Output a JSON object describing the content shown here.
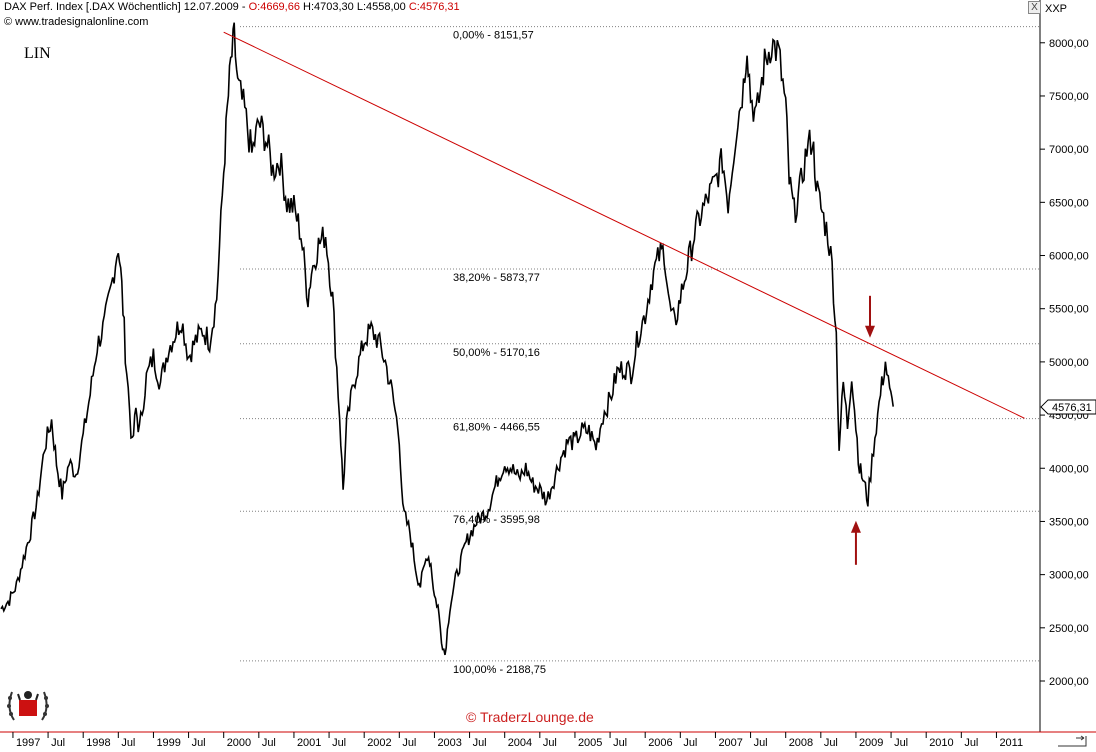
{
  "header": {
    "title": "DAX Perf. Index [.DAX  Wöchentlich]",
    "date": "12.07.2009",
    "open": "O:4669,66",
    "high": "H:4703,30",
    "low": "L:4558,00",
    "close": "C:4576,31",
    "source": "www.tradesignalonline.com",
    "close_color": "#cc0000"
  },
  "scale_label": "LIN",
  "right_top_label": "XXP",
  "close_close_button": "X",
  "brand": "© TraderzLounge.de",
  "colors": {
    "price": "#000000",
    "trendline": "#cc0000",
    "arrow": "#a01010",
    "grid": "#808080"
  },
  "chart_data": {
    "type": "line",
    "title": "DAX Perf. Index [.DAX  Wöchentlich]",
    "xlabel": "",
    "ylabel": "",
    "ylim": [
      1500,
      8200
    ],
    "yticks": [
      "2000,00",
      "2500,00",
      "3000,00",
      "3500,00",
      "4000,00",
      "4500,00",
      "5000,00",
      "5500,00",
      "6000,00",
      "6500,00",
      "7000,00",
      "7500,00",
      "8000,00"
    ],
    "xticks": [
      {
        "t": 1997.0,
        "label": "1997"
      },
      {
        "t": 1997.5,
        "label": "Jul"
      },
      {
        "t": 1998.0,
        "label": "1998"
      },
      {
        "t": 1998.5,
        "label": "Jul"
      },
      {
        "t": 1999.0,
        "label": "1999"
      },
      {
        "t": 1999.5,
        "label": "Jul"
      },
      {
        "t": 2000.0,
        "label": "2000"
      },
      {
        "t": 2000.5,
        "label": "Jul"
      },
      {
        "t": 2001.0,
        "label": "2001"
      },
      {
        "t": 2001.5,
        "label": "Jul"
      },
      {
        "t": 2002.0,
        "label": "2002"
      },
      {
        "t": 2002.5,
        "label": "Jul"
      },
      {
        "t": 2003.0,
        "label": "2003"
      },
      {
        "t": 2003.5,
        "label": "Jul"
      },
      {
        "t": 2004.0,
        "label": "2004"
      },
      {
        "t": 2004.5,
        "label": "Jul"
      },
      {
        "t": 2005.0,
        "label": "2005"
      },
      {
        "t": 2005.5,
        "label": "Jul"
      },
      {
        "t": 2006.0,
        "label": "2006"
      },
      {
        "t": 2006.5,
        "label": "Jul"
      },
      {
        "t": 2007.0,
        "label": "2007"
      },
      {
        "t": 2007.5,
        "label": "Jul"
      },
      {
        "t": 2008.0,
        "label": "2008"
      },
      {
        "t": 2008.5,
        "label": "Jul"
      },
      {
        "t": 2009.0,
        "label": "2009"
      },
      {
        "t": 2009.5,
        "label": "Jul"
      },
      {
        "t": 2010.0,
        "label": "2010"
      },
      {
        "t": 2010.5,
        "label": "Jul"
      },
      {
        "t": 2011.0,
        "label": "2011"
      }
    ],
    "fib_levels": [
      {
        "label": "0,00% - 8151,57",
        "value": 8151.57
      },
      {
        "label": "38,20% - 5873,77",
        "value": 5873.77
      },
      {
        "label": "50,00% - 5170,16",
        "value": 5170.16
      },
      {
        "label": "61,80% - 4466,55",
        "value": 4466.55
      },
      {
        "label": "76,40% - 3595,98",
        "value": 3595.98
      },
      {
        "label": "100,00% - 2188,75",
        "value": 2188.75
      }
    ],
    "last_value_label": "4576,31",
    "last_value": 4576.31,
    "trendline": [
      {
        "t": 2000.0,
        "v": 8100
      },
      {
        "t": 2011.4,
        "v": 4470
      }
    ],
    "arrows": [
      {
        "t": 2009.2,
        "v": 5170,
        "direction": "down"
      },
      {
        "t": 2009.0,
        "v": 3600,
        "direction": "up"
      }
    ],
    "series": [
      {
        "values": [
          [
            1996.83,
            2680
          ],
          [
            1996.95,
            2760
          ],
          [
            1997.05,
            2900
          ],
          [
            1997.15,
            3150
          ],
          [
            1997.25,
            3400
          ],
          [
            1997.35,
            3700
          ],
          [
            1997.45,
            4200
          ],
          [
            1997.55,
            4450
          ],
          [
            1997.62,
            4050
          ],
          [
            1997.7,
            3750
          ],
          [
            1997.8,
            4050
          ],
          [
            1997.9,
            3950
          ],
          [
            1998.0,
            4300
          ],
          [
            1998.1,
            4700
          ],
          [
            1998.2,
            5150
          ],
          [
            1998.3,
            5350
          ],
          [
            1998.4,
            5700
          ],
          [
            1998.5,
            6100
          ],
          [
            1998.55,
            5700
          ],
          [
            1998.6,
            5100
          ],
          [
            1998.7,
            4200
          ],
          [
            1998.75,
            4550
          ],
          [
            1998.8,
            4350
          ],
          [
            1998.9,
            4850
          ],
          [
            1999.0,
            5050
          ],
          [
            1999.1,
            4800
          ],
          [
            1999.2,
            5100
          ],
          [
            1999.3,
            5250
          ],
          [
            1999.4,
            5400
          ],
          [
            1999.5,
            5050
          ],
          [
            1999.6,
            5200
          ],
          [
            1999.7,
            5300
          ],
          [
            1999.8,
            5200
          ],
          [
            1999.9,
            5600
          ],
          [
            2000.0,
            6800
          ],
          [
            2000.05,
            7350
          ],
          [
            2000.1,
            7800
          ],
          [
            2000.15,
            8050
          ],
          [
            2000.2,
            7600
          ],
          [
            2000.3,
            7350
          ],
          [
            2000.4,
            6950
          ],
          [
            2000.5,
            7250
          ],
          [
            2000.6,
            7100
          ],
          [
            2000.7,
            6800
          ],
          [
            2000.8,
            6900
          ],
          [
            2000.9,
            6500
          ],
          [
            2001.0,
            6450
          ],
          [
            2001.1,
            6200
          ],
          [
            2001.2,
            5600
          ],
          [
            2001.25,
            5850
          ],
          [
            2001.35,
            6100
          ],
          [
            2001.45,
            6200
          ],
          [
            2001.55,
            5600
          ],
          [
            2001.65,
            4500
          ],
          [
            2001.7,
            3800
          ],
          [
            2001.75,
            4400
          ],
          [
            2001.85,
            4800
          ],
          [
            2002.0,
            5200
          ],
          [
            2002.1,
            5300
          ],
          [
            2002.2,
            5200
          ],
          [
            2002.3,
            5000
          ],
          [
            2002.4,
            4700
          ],
          [
            2002.5,
            4300
          ],
          [
            2002.55,
            3600
          ],
          [
            2002.65,
            3400
          ],
          [
            2002.75,
            3000
          ],
          [
            2002.8,
            2900
          ],
          [
            2002.9,
            3200
          ],
          [
            2002.95,
            3100
          ],
          [
            2003.0,
            2800
          ],
          [
            2003.05,
            2700
          ],
          [
            2003.1,
            2400
          ],
          [
            2003.15,
            2250
          ],
          [
            2003.22,
            2700
          ],
          [
            2003.3,
            2950
          ],
          [
            2003.45,
            3300
          ],
          [
            2003.6,
            3500
          ],
          [
            2003.75,
            3600
          ],
          [
            2003.9,
            3900
          ],
          [
            2004.0,
            4050
          ],
          [
            2004.1,
            4000
          ],
          [
            2004.2,
            3900
          ],
          [
            2004.3,
            4000
          ],
          [
            2004.4,
            3850
          ],
          [
            2004.5,
            3800
          ],
          [
            2004.6,
            3700
          ],
          [
            2004.7,
            3900
          ],
          [
            2004.8,
            4100
          ],
          [
            2004.9,
            4250
          ],
          [
            2005.0,
            4250
          ],
          [
            2005.1,
            4350
          ],
          [
            2005.2,
            4350
          ],
          [
            2005.3,
            4200
          ],
          [
            2005.4,
            4500
          ],
          [
            2005.5,
            4650
          ],
          [
            2005.6,
            4900
          ],
          [
            2005.7,
            4950
          ],
          [
            2005.8,
            4900
          ],
          [
            2005.9,
            5250
          ],
          [
            2006.0,
            5450
          ],
          [
            2006.1,
            5800
          ],
          [
            2006.2,
            6000
          ],
          [
            2006.27,
            6050
          ],
          [
            2006.35,
            5500
          ],
          [
            2006.42,
            5350
          ],
          [
            2006.5,
            5600
          ],
          [
            2006.6,
            5900
          ],
          [
            2006.7,
            6200
          ],
          [
            2006.8,
            6400
          ],
          [
            2006.9,
            6550
          ],
          [
            2007.0,
            6700
          ],
          [
            2007.1,
            6900
          ],
          [
            2007.18,
            6500
          ],
          [
            2007.3,
            7200
          ],
          [
            2007.4,
            7600
          ],
          [
            2007.45,
            8000
          ],
          [
            2007.5,
            7500
          ],
          [
            2007.58,
            7300
          ],
          [
            2007.7,
            7800
          ],
          [
            2007.8,
            8000
          ],
          [
            2007.9,
            7900
          ],
          [
            2008.0,
            7400
          ],
          [
            2008.05,
            6700
          ],
          [
            2008.12,
            6400
          ],
          [
            2008.2,
            6600
          ],
          [
            2008.3,
            7000
          ],
          [
            2008.38,
            7100
          ],
          [
            2008.45,
            6600
          ],
          [
            2008.52,
            6400
          ],
          [
            2008.6,
            6200
          ],
          [
            2008.66,
            5900
          ],
          [
            2008.72,
            5250
          ],
          [
            2008.76,
            4200
          ],
          [
            2008.82,
            4800
          ],
          [
            2008.88,
            4400
          ],
          [
            2008.94,
            4900
          ],
          [
            2009.0,
            4400
          ],
          [
            2009.05,
            4000
          ],
          [
            2009.1,
            3900
          ],
          [
            2009.17,
            3700
          ],
          [
            2009.25,
            4200
          ],
          [
            2009.35,
            4700
          ],
          [
            2009.42,
            5000
          ],
          [
            2009.48,
            4700
          ],
          [
            2009.53,
            4580
          ]
        ]
      }
    ]
  }
}
